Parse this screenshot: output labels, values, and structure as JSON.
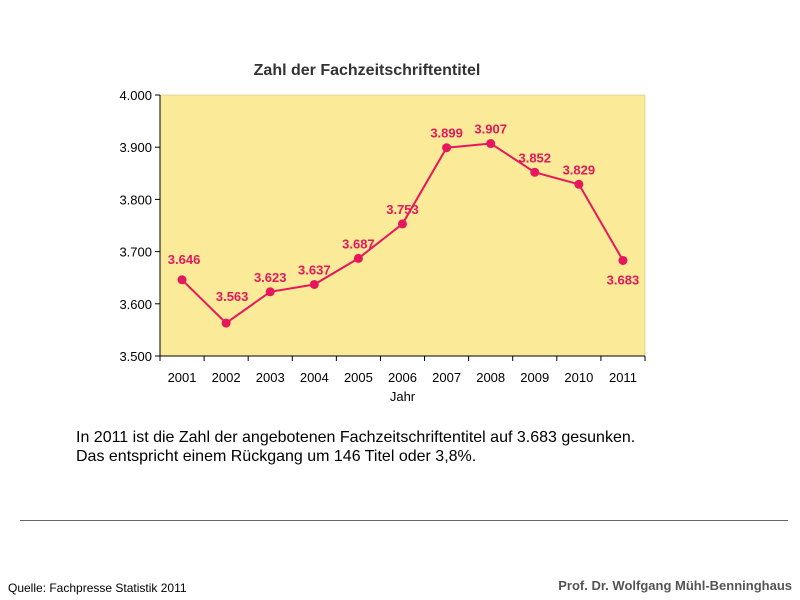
{
  "colors": {
    "plot_background": "#fbeb98",
    "series_color": "#e6175c",
    "axis_color": "#000000"
  },
  "chart_data": {
    "type": "line",
    "title": "Zahl der Fachzeitschriftentitel",
    "xlabel": "Jahr",
    "ylabel": "",
    "ylim": [
      3500,
      4000
    ],
    "yticks": [
      3500,
      3600,
      3700,
      3800,
      3900,
      4000
    ],
    "ytick_labels": [
      "3.500",
      "3.600",
      "3.700",
      "3.800",
      "3.900",
      "4.000"
    ],
    "grid": false,
    "categories": [
      "2001",
      "2002",
      "2003",
      "2004",
      "2005",
      "2006",
      "2007",
      "2008",
      "2009",
      "2010",
      "2011"
    ],
    "series": [
      {
        "values": [
          3646,
          3563,
          3623,
          3637,
          3687,
          3753,
          3899,
          3907,
          3852,
          3829,
          3683
        ],
        "labels": [
          "3.646",
          "3.563",
          "3.623",
          "3.637",
          "3.687",
          "3.753",
          "3.899",
          "3.907",
          "3.852",
          "3.829",
          "3.683"
        ]
      }
    ]
  },
  "caption": {
    "line1": "In 2011 ist die Zahl der angebotenen Fachzeitschriftentitel auf 3.683 gesunken.",
    "line2": "Das entspricht einem Rückgang um 146 Titel oder 3,8%."
  },
  "footer": {
    "source": "Quelle:  Fachpresse Statistik 2011",
    "author": "Prof. Dr. Wolfgang Mühl-Benninghaus"
  }
}
